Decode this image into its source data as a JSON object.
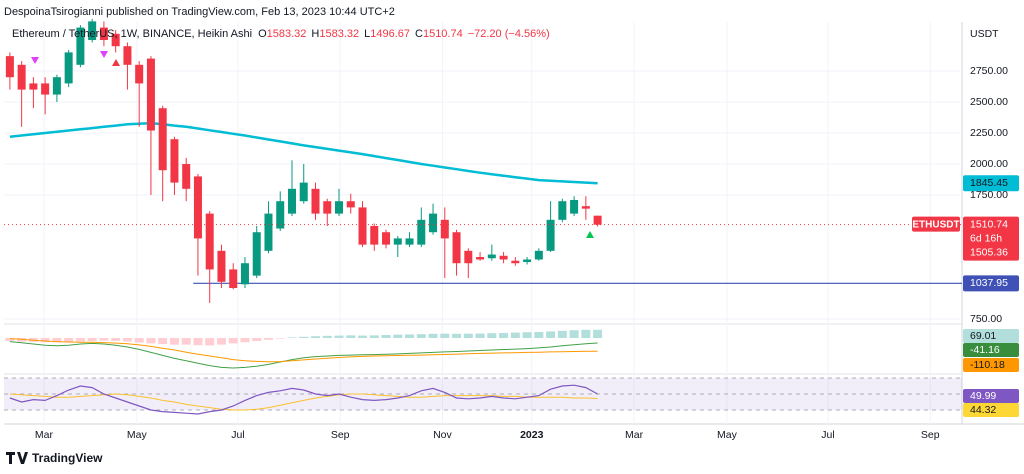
{
  "chart_data": {
    "type": "candlestick",
    "header": "DespoinaTsirogianni published on TradingView.com, Feb 13, 2023 10:44 UTC+2",
    "legend": {
      "symbol": "Ethereum / TetherUS, 1W, BINANCE, Heikin Ashi",
      "items": [
        {
          "label": "O",
          "value": 1583.32
        },
        {
          "label": "H",
          "value": 1583.32
        },
        {
          "label": "L",
          "value": 1496.67
        },
        {
          "label": "C",
          "value": 1510.74
        }
      ],
      "change": "−72.20 (−4.56%)"
    },
    "axis_unit": "USDT",
    "footer": "TradingView",
    "up_color": "#089981",
    "down_color": "#f23645",
    "grid": true,
    "xlim": [
      -0.5,
      81
    ],
    "xticks": [
      {
        "value": 2.9,
        "label": "Mar"
      },
      {
        "value": 10.8,
        "label": "May"
      },
      {
        "value": 19.4,
        "label": "Jul"
      },
      {
        "value": 28.1,
        "label": "Sep"
      },
      {
        "value": 36.8,
        "label": "Nov"
      },
      {
        "value": 44.4,
        "label": "2023"
      },
      {
        "value": 53.1,
        "label": "Mar"
      },
      {
        "value": 61.0,
        "label": "May"
      },
      {
        "value": 69.6,
        "label": "Jul"
      },
      {
        "value": 78.3,
        "label": "Sep"
      }
    ],
    "ylim": [
      726,
      3121
    ],
    "yticks": [
      {
        "value": 2750,
        "label": "2750.00"
      },
      {
        "value": 2500,
        "label": "2500.00"
      },
      {
        "value": 2250,
        "label": "2250.00"
      },
      {
        "value": 2000,
        "label": "2000.00"
      },
      {
        "value": 1750,
        "label": "1750.00"
      },
      {
        "value": 750,
        "label": "750.00"
      }
    ],
    "open": [
      2870,
      2800,
      2650,
      2650,
      2560,
      2650,
      2800,
      3000,
      3100,
      3050,
      2950,
      2800,
      2850,
      2450,
      2200,
      2000,
      1900,
      1600,
      1300,
      1150,
      1030,
      1100,
      1300,
      1480,
      1600,
      1700,
      1800,
      1700,
      1600,
      1700,
      1650,
      1500,
      1450,
      1350,
      1350,
      1350,
      1450,
      1550,
      1450,
      1300,
      1250,
      1240,
      1260,
      1220,
      1210,
      1230,
      1300,
      1550,
      1600,
      1660,
      1583.32
    ],
    "high": [
      2900,
      2830,
      2700,
      2700,
      2720,
      2920,
      3120,
      3170,
      3150,
      3080,
      2980,
      2830,
      2870,
      2470,
      2220,
      2050,
      1920,
      1620,
      1350,
      1200,
      1250,
      1500,
      1700,
      1780,
      2030,
      2000,
      1850,
      1720,
      1800,
      1760,
      1700,
      1520,
      1470,
      1420,
      1450,
      1650,
      1680,
      1650,
      1470,
      1320,
      1290,
      1350,
      1290,
      1250,
      1250,
      1320,
      1700,
      1720,
      1740,
      1740,
      1583.32
    ],
    "low": [
      2600,
      2300,
      2450,
      2400,
      2500,
      2620,
      2780,
      2980,
      2950,
      2900,
      2600,
      2300,
      1750,
      1700,
      1750,
      1700,
      1100,
      880,
      1000,
      990,
      1000,
      1080,
      1280,
      1460,
      1580,
      1680,
      1550,
      1500,
      1580,
      1600,
      1330,
      1300,
      1320,
      1250,
      1330,
      1330,
      1430,
      1080,
      1100,
      1080,
      1220,
      1220,
      1200,
      1180,
      1190,
      1220,
      1290,
      1530,
      1580,
      1550,
      1496.67
    ],
    "close": [
      2700,
      2600,
      2600,
      2560,
      2700,
      2900,
      3100,
      3150,
      3000,
      2950,
      2800,
      2650,
      2270,
      1950,
      1850,
      1800,
      1400,
      1150,
      1050,
      1000,
      1200,
      1450,
      1600,
      1700,
      1800,
      1850,
      1600,
      1600,
      1700,
      1650,
      1350,
      1350,
      1350,
      1400,
      1400,
      1550,
      1600,
      1400,
      1200,
      1200,
      1230,
      1270,
      1230,
      1200,
      1230,
      1300,
      1550,
      1700,
      1710,
      1640,
      1510.74
    ],
    "ma": {
      "color": "#00bcd4",
      "label": 1845.45,
      "values": [
        2220,
        2230,
        2240,
        2250,
        2260,
        2270,
        2280,
        2290,
        2300,
        2310,
        2320,
        2325,
        2330,
        2320,
        2310,
        2300,
        2286,
        2272,
        2258,
        2244,
        2230,
        2214,
        2198,
        2182,
        2166,
        2150,
        2136,
        2122,
        2108,
        2094,
        2080,
        2064,
        2048,
        2032,
        2016,
        2000,
        1986,
        1972,
        1958,
        1944,
        1930,
        1918,
        1906,
        1894,
        1882,
        1870,
        1865,
        1860,
        1855,
        1850,
        1845
      ]
    },
    "hline": {
      "value": 1037.95,
      "start": 15.6,
      "color": "#3f51b5"
    },
    "last_price": {
      "symbol": "ETHUSDT",
      "countdown": "6d 16h",
      "value": 1505.36
    },
    "macd": {
      "ylim": [
        -283,
        100
      ],
      "histogram": [
        -25,
        -30,
        -32,
        -35,
        -35,
        -30,
        -28,
        -25,
        -22,
        -25,
        -30,
        -38,
        -45,
        -50,
        -55,
        -55,
        -60,
        -62,
        -55,
        -45,
        -35,
        -25,
        -15,
        -5,
        5,
        10,
        15,
        18,
        20,
        22,
        20,
        22,
        25,
        28,
        30,
        32,
        35,
        36,
        35,
        36,
        37,
        40,
        42,
        45,
        48,
        50,
        55,
        60,
        65,
        68,
        69.01
      ],
      "macd": [
        -30,
        -40,
        -50,
        -60,
        -65,
        -60,
        -50,
        -45,
        -50,
        -60,
        -75,
        -95,
        -120,
        -145,
        -170,
        -190,
        -210,
        -230,
        -245,
        -250,
        -245,
        -235,
        -220,
        -200,
        -180,
        -165,
        -155,
        -150,
        -145,
        -142,
        -140,
        -138,
        -135,
        -132,
        -128,
        -124,
        -120,
        -116,
        -112,
        -108,
        -104,
        -100,
        -96,
        -92,
        -88,
        -82,
        -75,
        -65,
        -56,
        -48,
        -41.16
      ],
      "signal": [
        -5,
        -10,
        -18,
        -25,
        -30,
        -33,
        -35,
        -36,
        -38,
        -42,
        -48,
        -57,
        -70,
        -85,
        -100,
        -118,
        -135,
        -150,
        -165,
        -180,
        -190,
        -195,
        -198,
        -196,
        -190,
        -182,
        -175,
        -168,
        -162,
        -157,
        -153,
        -150,
        -148,
        -146,
        -144,
        -142,
        -140,
        -137,
        -134,
        -131,
        -128,
        -126,
        -124,
        -122,
        -120,
        -118,
        -116,
        -114,
        -112,
        -111,
        -110.18
      ]
    },
    "rsi": {
      "ylim": [
        27.5,
        72.5
      ],
      "bands": [
        70,
        50,
        30
      ],
      "rsi": [
        45,
        40,
        43,
        42,
        48,
        55,
        60,
        58,
        50,
        45,
        40,
        35,
        30,
        28,
        27,
        26,
        25,
        28,
        30,
        35,
        42,
        48,
        52,
        54,
        57,
        55,
        50,
        48,
        50,
        46,
        43,
        42,
        43,
        45,
        48,
        54,
        57,
        52,
        45,
        44,
        45,
        47,
        45,
        44,
        46,
        48,
        56,
        60,
        61,
        58,
        49.99
      ],
      "ma": [
        50,
        49,
        48,
        47,
        46,
        46,
        47,
        48,
        49,
        50,
        49,
        47,
        45,
        42,
        40,
        37,
        35,
        33,
        31,
        30,
        30,
        31,
        33,
        36,
        39,
        42,
        45,
        47,
        49,
        50,
        50,
        49,
        48,
        47,
        46,
        46,
        47,
        48,
        48,
        48,
        48,
        48,
        47,
        47,
        46,
        46,
        46,
        46,
        45,
        45,
        44.32
      ]
    }
  }
}
